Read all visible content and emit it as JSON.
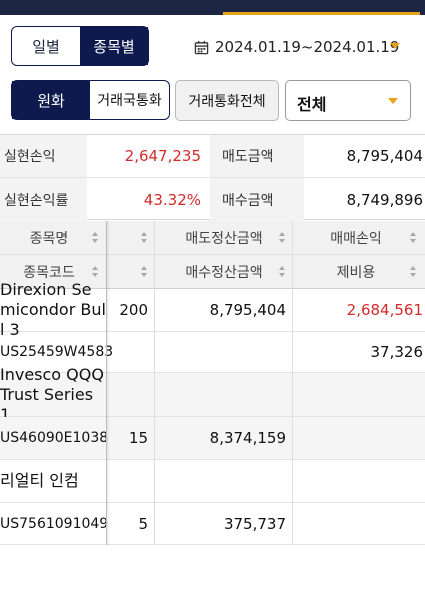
{
  "view_toggle": {
    "daily": "일별",
    "by_stock": "종목별"
  },
  "date_range": "2024.01.19~2024.01.19",
  "currency_toggle": {
    "krw": "원화",
    "trade_currency": "거래국통화"
  },
  "trade_currency_all_button": "거래통화전체",
  "filter_select": "전체",
  "summary": {
    "realized_pl_label": "실현손익",
    "realized_pl_value": "2,647,235",
    "realized_rate_label": "실현손익률",
    "realized_rate_value": "43.32%",
    "sell_amount_label": "매도금액",
    "sell_amount_value": "8,795,404",
    "buy_amount_label": "매수금액",
    "buy_amount_value": "8,749,896"
  },
  "table": {
    "headers": {
      "name": "종목명",
      "code": "종목코드",
      "sell_settle": "매도정산금액",
      "buy_settle": "매수정산금액",
      "trade_pl": "매매손익",
      "fees": "제비용"
    },
    "rows": [
      {
        "name": "Direxion Semicondor Bull 3",
        "code": "US25459W4583",
        "qty": "200",
        "amount": "8,795,404",
        "qty2": "",
        "amount2": "",
        "pl": "2,684,561",
        "fees": "37,326"
      },
      {
        "name": "Invesco QQQ Trust Series 1",
        "code": "US46090E1038",
        "qty": "",
        "amount": "",
        "qty2": "15",
        "amount2": "8,374,159",
        "pl": "",
        "fees": ""
      },
      {
        "name": "리얼티 인컴",
        "code": "US7561091049",
        "qty": "",
        "amount": "",
        "qty2": "5",
        "amount2": "375,737",
        "pl": "",
        "fees": ""
      }
    ]
  },
  "colors": {
    "navy": "#0e1a4d",
    "accent": "#e8a317",
    "loss_profit_red": "#d42a2a"
  },
  "icons": {
    "date": "calendar-icon",
    "sort": "sort-icon",
    "dropdown": "chevron-down-icon"
  }
}
